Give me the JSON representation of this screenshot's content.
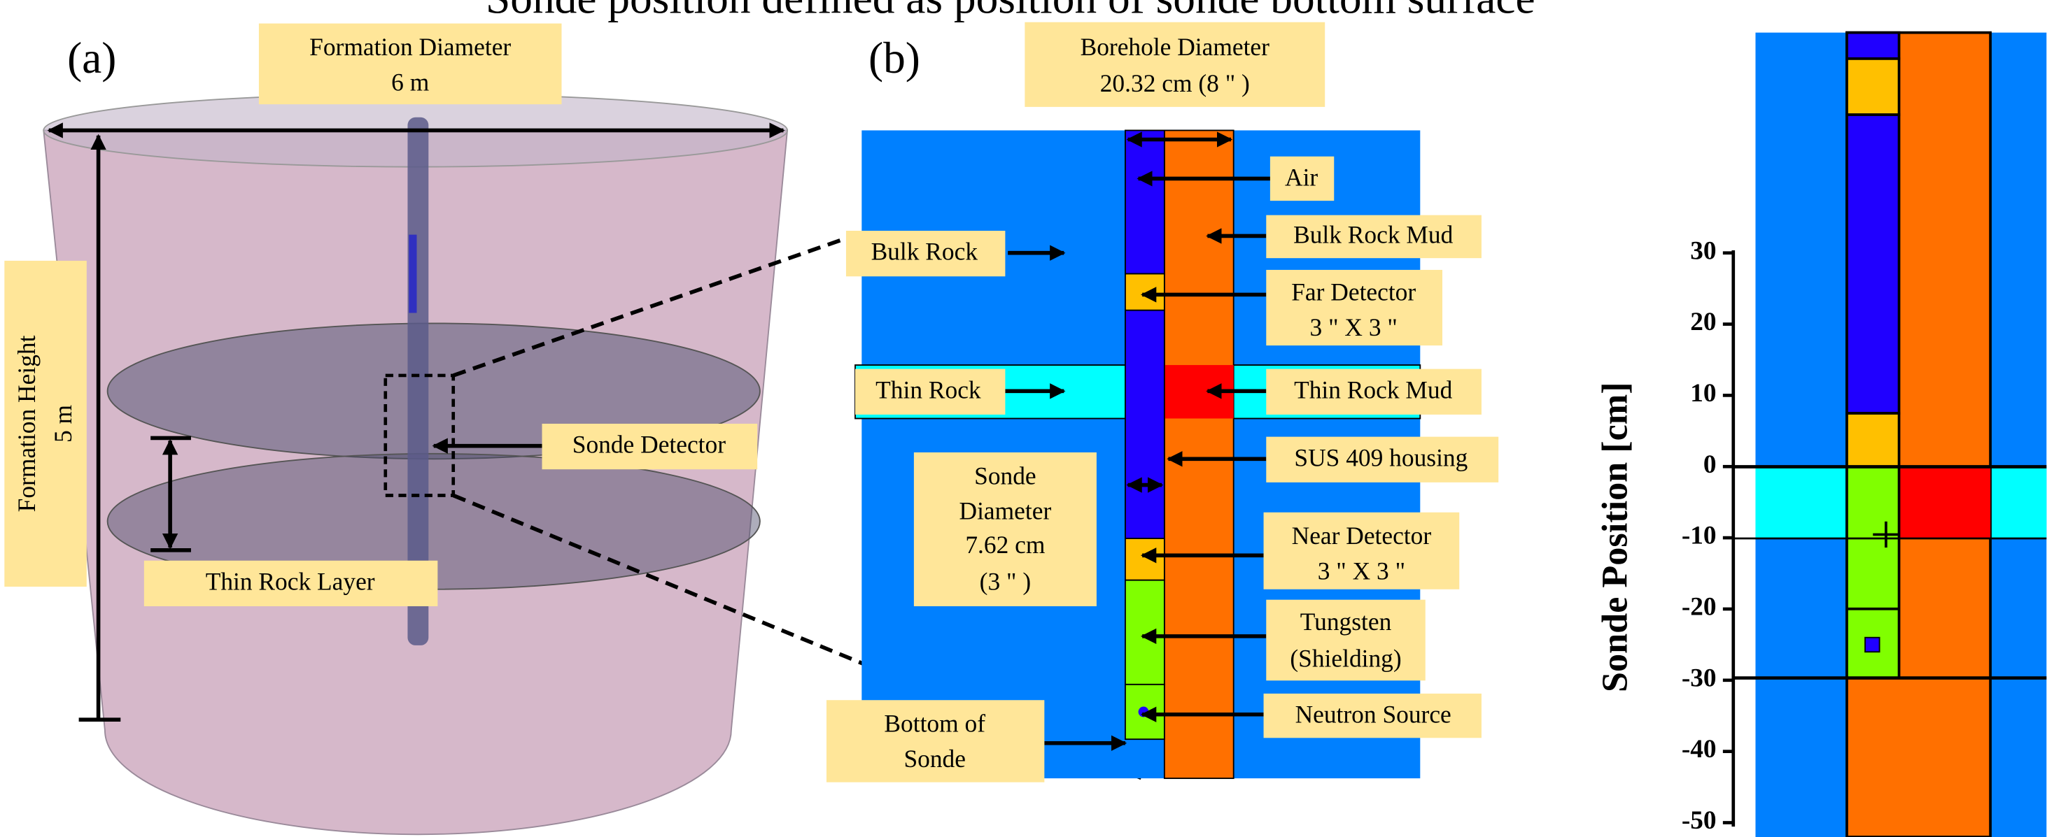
{
  "title": "Sonde position defined as position of sonde bottom surface",
  "panel_a": {
    "label": "(a)",
    "formation_diameter": [
      "Formation Diameter",
      "6 m"
    ],
    "formation_height": [
      "Formation Height",
      "5 m"
    ],
    "sonde_detector": "Sonde Detector",
    "thin_rock_layer": "Thin Rock Layer"
  },
  "panel_b": {
    "label": "(b)",
    "borehole_diameter": [
      "Borehole Diameter",
      "20.32 cm (8 \" )"
    ],
    "air": "Air",
    "bulk_rock_mud": "Bulk Rock Mud",
    "bulk_rock": "Bulk Rock",
    "far_detector": [
      "Far Detector",
      "3 \" X 3 \""
    ],
    "thin_rock": "Thin Rock",
    "thin_rock_mud": "Thin Rock Mud",
    "housing": "SUS 409 housing",
    "sonde_diameter": [
      "Sonde",
      "Diameter",
      "7.62 cm",
      "(3 \" )"
    ],
    "near_detector": [
      "Near Detector",
      "3 \" X 3 \""
    ],
    "tungsten": [
      "Tungsten",
      "(Shielding)"
    ],
    "neutron_source": "Neutron Source",
    "bottom_of_sonde": [
      "Bottom of",
      "Sonde"
    ]
  },
  "panel_c": {
    "axis_label": "Sonde Position [cm]",
    "ylim": [
      -50,
      30
    ],
    "yticks": [
      30,
      20,
      10,
      0,
      -10,
      -20,
      -30,
      -40,
      -50
    ]
  }
}
